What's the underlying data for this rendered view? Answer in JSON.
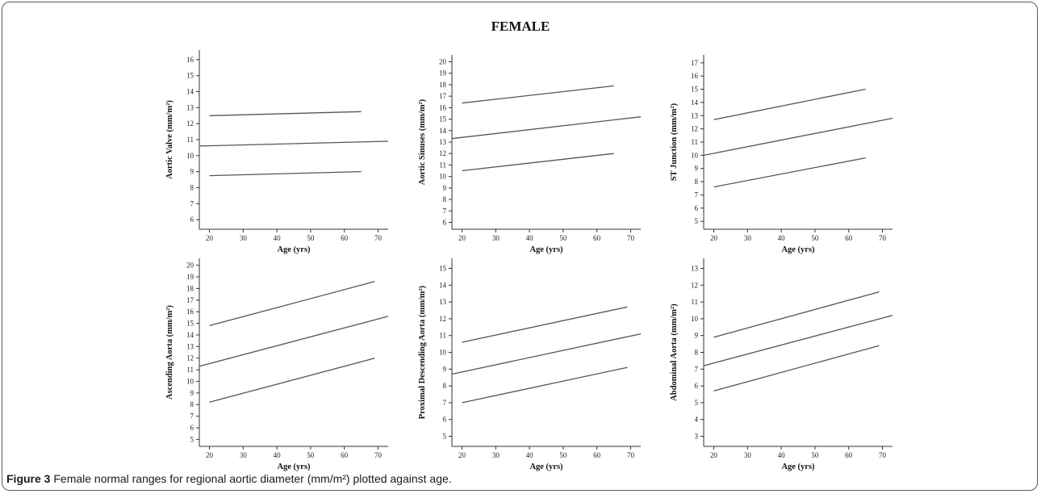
{
  "figure_title": "FEMALE",
  "caption": {
    "label": "Figure 3",
    "text": "Female normal ranges for regional aortic diameter (mm/m²) plotted against age."
  },
  "chart_data": [
    {
      "type": "line",
      "xlabel": "Age (yrs)",
      "ylabel": "Aortic Valve (mm/m²)",
      "xlim": [
        17,
        73
      ],
      "ylim": [
        5.4,
        16.6
      ],
      "xticks": [
        20,
        30,
        40,
        50,
        60,
        70
      ],
      "yticks": [
        6,
        7,
        8,
        9,
        10,
        11,
        12,
        13,
        14,
        15,
        16
      ],
      "series": [
        {
          "points": [
            [
              20,
              12.5
            ],
            [
              65,
              12.75
            ]
          ]
        },
        {
          "points": [
            [
              17,
              10.6
            ],
            [
              73,
              10.9
            ]
          ]
        },
        {
          "points": [
            [
              20,
              8.75
            ],
            [
              65,
              9.0
            ]
          ]
        }
      ]
    },
    {
      "type": "line",
      "xlabel": "Age (yrs)",
      "ylabel": "Aortic Sinuses (mm/m²)",
      "xlim": [
        17,
        73
      ],
      "ylim": [
        5.4,
        20.6
      ],
      "xticks": [
        20,
        30,
        40,
        50,
        60,
        70
      ],
      "yticks": [
        6,
        7,
        8,
        9,
        10,
        11,
        12,
        13,
        14,
        15,
        16,
        17,
        18,
        19,
        20
      ],
      "series": [
        {
          "points": [
            [
              20,
              16.4
            ],
            [
              65,
              17.9
            ]
          ]
        },
        {
          "points": [
            [
              17,
              13.3
            ],
            [
              73,
              15.2
            ]
          ]
        },
        {
          "points": [
            [
              20,
              10.5
            ],
            [
              65,
              12.0
            ]
          ]
        }
      ]
    },
    {
      "type": "line",
      "xlabel": "Age (yrs)",
      "ylabel": "ST Junction (mm/m²)",
      "xlim": [
        17,
        73
      ],
      "ylim": [
        4.4,
        17.6
      ],
      "xticks": [
        20,
        30,
        40,
        50,
        60,
        70
      ],
      "yticks": [
        5,
        6,
        7,
        8,
        9,
        10,
        11,
        12,
        13,
        14,
        15,
        16,
        17
      ],
      "series": [
        {
          "points": [
            [
              20,
              12.7
            ],
            [
              65,
              15.0
            ]
          ]
        },
        {
          "points": [
            [
              17,
              10.0
            ],
            [
              73,
              12.8
            ]
          ]
        },
        {
          "points": [
            [
              20,
              7.6
            ],
            [
              65,
              9.8
            ]
          ]
        }
      ]
    },
    {
      "type": "line",
      "xlabel": "Age (yrs)",
      "ylabel": "Ascending Aorta (mm/m²)",
      "xlim": [
        17,
        73
      ],
      "ylim": [
        4.4,
        20.6
      ],
      "xticks": [
        20,
        30,
        40,
        50,
        60,
        70
      ],
      "yticks": [
        5,
        6,
        7,
        8,
        9,
        10,
        11,
        12,
        13,
        14,
        15,
        16,
        17,
        18,
        19,
        20
      ],
      "series": [
        {
          "points": [
            [
              20,
              14.8
            ],
            [
              69,
              18.6
            ]
          ]
        },
        {
          "points": [
            [
              17,
              11.3
            ],
            [
              73,
              15.6
            ]
          ]
        },
        {
          "points": [
            [
              20,
              8.2
            ],
            [
              69,
              12.0
            ]
          ]
        }
      ]
    },
    {
      "type": "line",
      "xlabel": "Age (yrs)",
      "ylabel": "Proximal Descending Aorta (mm/m²)",
      "xlim": [
        17,
        73
      ],
      "ylim": [
        4.4,
        15.6
      ],
      "xticks": [
        20,
        30,
        40,
        50,
        60,
        70
      ],
      "yticks": [
        5,
        6,
        7,
        8,
        9,
        10,
        11,
        12,
        13,
        14,
        15
      ],
      "series": [
        {
          "points": [
            [
              20,
              10.6
            ],
            [
              69,
              12.7
            ]
          ]
        },
        {
          "points": [
            [
              17,
              8.7
            ],
            [
              73,
              11.1
            ]
          ]
        },
        {
          "points": [
            [
              20,
              7.0
            ],
            [
              69,
              9.1
            ]
          ]
        }
      ]
    },
    {
      "type": "line",
      "xlabel": "Age (yrs)",
      "ylabel": "Abdominal  Aorta (mm/m²)",
      "xlim": [
        17,
        73
      ],
      "ylim": [
        2.4,
        13.6
      ],
      "xticks": [
        20,
        30,
        40,
        50,
        60,
        70
      ],
      "yticks": [
        3,
        4,
        5,
        6,
        7,
        8,
        9,
        10,
        11,
        12,
        13
      ],
      "series": [
        {
          "points": [
            [
              20,
              8.9
            ],
            [
              69,
              11.6
            ]
          ]
        },
        {
          "points": [
            [
              17,
              7.2
            ],
            [
              73,
              10.2
            ]
          ]
        },
        {
          "points": [
            [
              20,
              5.7
            ],
            [
              69,
              8.4
            ]
          ]
        }
      ]
    }
  ]
}
